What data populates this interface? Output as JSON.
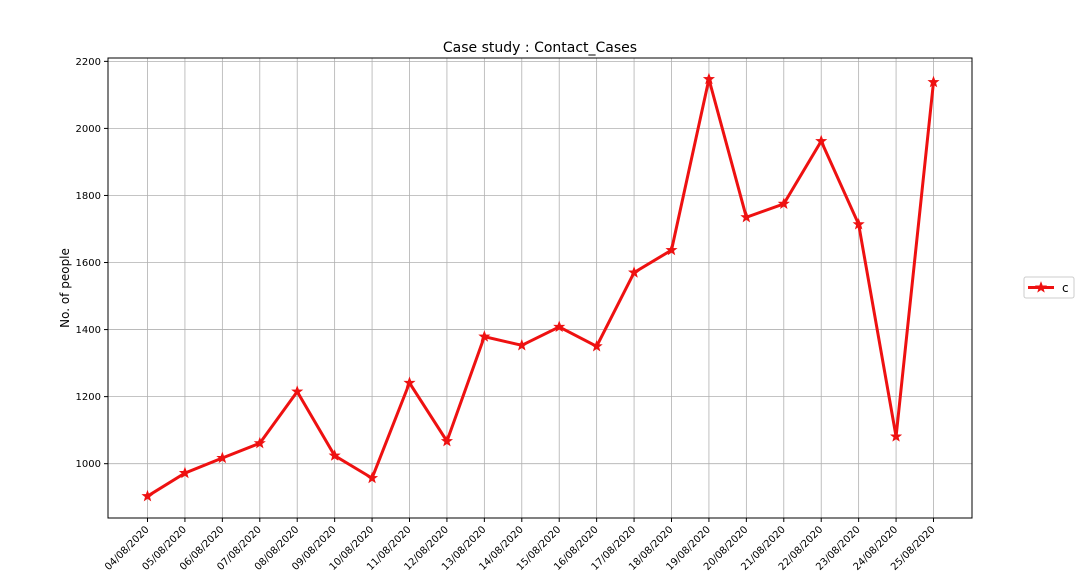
{
  "chart_data": {
    "type": "line",
    "title": "Case study : Contact_Cases",
    "xlabel": "",
    "ylabel": "No. of people",
    "categories": [
      "04/08/2020",
      "05/08/2020",
      "06/08/2020",
      "07/08/2020",
      "08/08/2020",
      "09/08/2020",
      "10/08/2020",
      "11/08/2020",
      "12/08/2020",
      "13/08/2020",
      "14/08/2020",
      "15/08/2020",
      "16/08/2020",
      "17/08/2020",
      "18/08/2020",
      "19/08/2020",
      "20/08/2020",
      "21/08/2020",
      "22/08/2020",
      "23/08/2020",
      "24/08/2020",
      "25/08/2020"
    ],
    "series": [
      {
        "name": "c",
        "color": "#ee1111",
        "marker": "star",
        "values": [
          903,
          972,
          1017,
          1061,
          1215,
          1024,
          957,
          1241,
          1067,
          1379,
          1353,
          1408,
          1350,
          1570,
          1637,
          2147,
          1735,
          1775,
          1962,
          1714,
          1081,
          2138
        ]
      }
    ],
    "ylim": [
      838,
      2210
    ],
    "yticks": [
      1000,
      1200,
      1400,
      1600,
      1800,
      2000,
      2200
    ],
    "grid": true,
    "legend_position": "right"
  }
}
